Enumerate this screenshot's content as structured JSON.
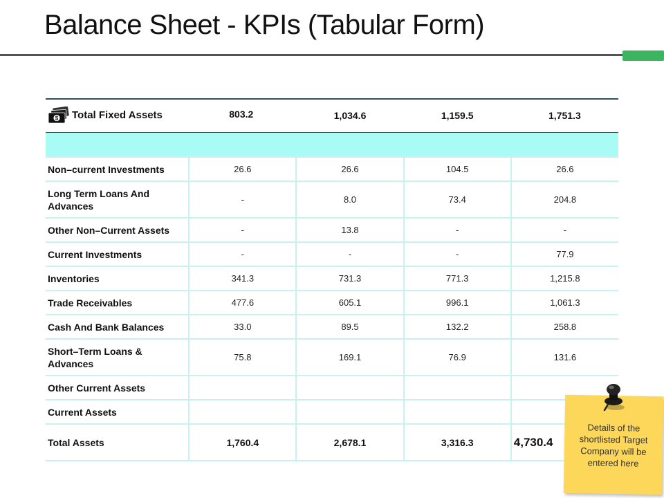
{
  "title": "Balance Sheet - KPIs (Tabular Form)",
  "header_row": {
    "icon": "money-stack-icon",
    "label": "Total Fixed Assets",
    "values": [
      "803.2",
      "1,034.6",
      "1,159.5",
      "1,751.3"
    ]
  },
  "rows": [
    {
      "label": "Non–current Investments",
      "values": [
        "26.6",
        "26.6",
        "104.5",
        "26.6"
      ]
    },
    {
      "label": "Long Term Loans And Advances",
      "values": [
        "-",
        "8.0",
        "73.4",
        "204.8"
      ]
    },
    {
      "label": "Other Non–Current Assets",
      "values": [
        "-",
        "13.8",
        "-",
        "-"
      ]
    },
    {
      "label": "Current Investments",
      "values": [
        "-",
        "-",
        "-",
        "77.9"
      ]
    },
    {
      "label": "Inventories",
      "values": [
        "341.3",
        "731.3",
        "771.3",
        "1,215.8"
      ]
    },
    {
      "label": "Trade Receivables",
      "values": [
        "477.6",
        "605.1",
        "996.1",
        "1,061.3"
      ]
    },
    {
      "label": "Cash And Bank Balances",
      "values": [
        "33.0",
        "89.5",
        "132.2",
        "258.8"
      ]
    },
    {
      "label": "Short–Term Loans & Advances",
      "values": [
        "75.8",
        "169.1",
        "76.9",
        "131.6"
      ]
    },
    {
      "label": "Other Current Assets",
      "values": [
        "",
        "",
        "",
        ""
      ]
    },
    {
      "label": "Current Assets",
      "values": [
        "",
        "",
        "",
        ""
      ]
    }
  ],
  "total_row": {
    "label": "Total Assets",
    "values": [
      "1,760.4",
      "2,678.1",
      "3,316.3",
      "4,730.4"
    ]
  },
  "sticky_note": {
    "text": "Details of the shortlisted Target Company will be entered here",
    "color": "#fcd75a",
    "pin_icon": "push-pin-icon"
  },
  "colors": {
    "band": "#a9fcf6",
    "grid": "#c8f2ef",
    "header_rule": "#2c4f5c",
    "accent": "#3cb55e"
  }
}
